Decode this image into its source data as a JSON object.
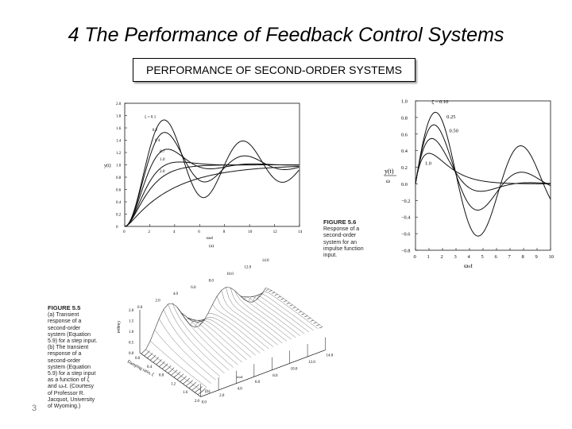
{
  "slide": {
    "title": "4 The Performance of  Feedback Control Systems",
    "subtitle": "PERFORMANCE OF SECOND-ORDER SYSTEMS",
    "number": "3"
  },
  "figure_5_5": {
    "caption_title": "FIGURE 5.5",
    "caption_lines": [
      "(a) Transient",
      "response of a",
      "second-order",
      "system (Equation",
      "5.9) for a step input.",
      "(b) The transient",
      "response of a",
      "second-order",
      "system (Equation",
      "5.9) for a step input",
      "as a function of ζ",
      "and ωₙt. (Courtesy",
      "of Professor R.",
      "Jacquot, University",
      "of Wyoming.)"
    ],
    "panel_a_label": "(a)",
    "panel_b_label": "(b)",
    "surface": {
      "zlabel": "Output",
      "xlabel": "Damping ratio, ζ",
      "ylabel": "ωₙt",
      "z_ticks": [
        "0.0",
        "0.5",
        "1.0",
        "1.5",
        "2.0"
      ],
      "zeta_ticks": [
        "0.0",
        "0.4",
        "0.8",
        "1.2",
        "1.6",
        "2.0"
      ],
      "t_ticks": [
        "0.0",
        "2.0",
        "4.0",
        "6.0",
        "8.0",
        "10.0",
        "12.0",
        "14.0"
      ],
      "back_t_ticks": [
        "0.0",
        "2.0",
        "4.0",
        "6.0",
        "8.0",
        "10.0",
        "12.0",
        "14.0"
      ]
    }
  },
  "figure_5_6": {
    "caption_title": "FIGURE 5.6",
    "caption_lines": [
      "Response of a",
      "second-order",
      "system for an",
      "impulse function",
      "input."
    ]
  },
  "chart_data": [
    {
      "type": "line",
      "title": "",
      "xlabel": "ωₙt",
      "ylabel": "y(t)",
      "xlim": [
        0,
        14
      ],
      "ylim": [
        0,
        2.0
      ],
      "x_ticks": [
        "0",
        "2",
        "4",
        "6",
        "8",
        "10",
        "12",
        "14"
      ],
      "y_ticks": [
        "0",
        "0.2",
        "0.4",
        "0.6",
        "0.8",
        "1.0",
        "1.2",
        "1.4",
        "1.6",
        "1.8",
        "2.0"
      ],
      "curve_kind": "step",
      "series": [
        {
          "name": "ζ = 0.1",
          "zeta": 0.1
        },
        {
          "name": "0.2",
          "zeta": 0.2
        },
        {
          "name": "0.4",
          "zeta": 0.4
        },
        {
          "name": "0.7",
          "zeta": 0.7
        },
        {
          "name": "1.0",
          "zeta": 1.0
        },
        {
          "name": "2.0",
          "zeta": 2.0
        }
      ]
    },
    {
      "type": "line",
      "title": "",
      "xlabel": "ωₙt",
      "ylabel": "y(t)/ωₙ",
      "xlim": [
        0,
        10
      ],
      "ylim": [
        -0.8,
        1.0
      ],
      "x_ticks": [
        "0",
        "1",
        "2",
        "3",
        "4",
        "5",
        "6",
        "7",
        "8",
        "9",
        "10"
      ],
      "y_ticks": [
        "1.0",
        "0.8",
        "0.6",
        "0.4",
        "0.2",
        "0.0",
        "−0.2",
        "−0.4",
        "−0.6",
        "−0.8"
      ],
      "curve_kind": "impulse",
      "series": [
        {
          "name": "ζ = 0.10",
          "zeta": 0.1
        },
        {
          "name": "0.25",
          "zeta": 0.25
        },
        {
          "name": "0.50",
          "zeta": 0.5
        },
        {
          "name": "1.0",
          "zeta": 1.0
        }
      ]
    }
  ]
}
